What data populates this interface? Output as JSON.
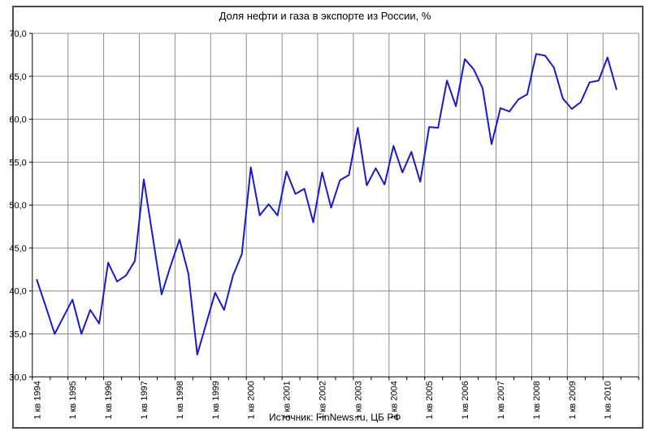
{
  "chart": {
    "title": "Доля нефти и газа в экспорте из России, %",
    "source": "Источник: FinNews.ru, ЦБ РФ"
  },
  "chart_data": {
    "type": "line",
    "title": "Доля нефти и газа в экспорте из России, %",
    "source": "Источник: FinNews.ru, ЦБ РФ",
    "x_frequency": "quarterly",
    "x_start": "1 кв 1994",
    "x_end": "2 кв 2010",
    "x_tick_labels": [
      "1 кв 1994",
      "1 кв 1995",
      "1 кв 1996",
      "1 кв 1997",
      "1 кв 1998",
      "1 кв 1999",
      "1 кв 2000",
      "1 кв 2001",
      "1 кв 2002",
      "1 кв 2003",
      "1 кв 2004",
      "1 кв 2005",
      "1 кв 2006",
      "1 кв 2007",
      "1 кв 2008",
      "1 кв 2009",
      "1 кв 2010"
    ],
    "y_tick_labels": [
      "70,0",
      "65,0",
      "60,0",
      "55,0",
      "50,0",
      "45,0",
      "40,0",
      "35,0",
      "30,0"
    ],
    "y_tick_values": [
      70,
      65,
      60,
      55,
      50,
      45,
      40,
      35,
      30
    ],
    "ylim": [
      30,
      70
    ],
    "grid": true,
    "legend_position": "none",
    "series": [
      {
        "name": "Доля нефти и газа в экспорте из России, %",
        "values": [
          41.3,
          38.2,
          35.0,
          37.0,
          39.0,
          35.0,
          37.8,
          36.2,
          43.3,
          41.1,
          41.8,
          43.5,
          53.0,
          46.3,
          39.6,
          42.9,
          46.0,
          42.0,
          32.6,
          36.2,
          39.8,
          37.8,
          41.8,
          44.3,
          54.4,
          48.8,
          50.1,
          48.8,
          53.9,
          51.3,
          51.9,
          48.0,
          53.8,
          49.7,
          52.9,
          53.5,
          59.0,
          52.3,
          54.3,
          52.4,
          56.9,
          53.8,
          56.2,
          52.7,
          59.1,
          59.0,
          64.5,
          61.5,
          67.0,
          65.8,
          63.6,
          57.1,
          61.3,
          60.9,
          62.3,
          62.9,
          67.6,
          67.4,
          66.0,
          62.4,
          61.2,
          62.0,
          64.3,
          64.5,
          67.2,
          63.5
        ]
      }
    ],
    "line_color": "#1a1acd",
    "grid_color": "#8c8c8c",
    "axis_color": "#000000",
    "background_color": "#ffffff"
  }
}
